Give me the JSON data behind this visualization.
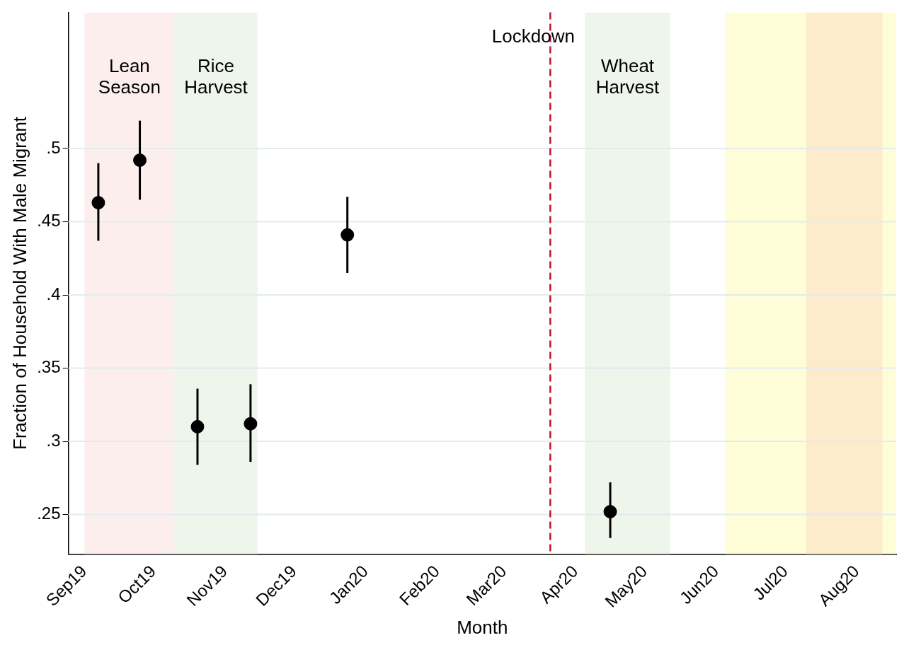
{
  "chart_data": {
    "type": "scatter",
    "xlabel": "Month",
    "ylabel": "Fraction of Household With Male Migrant",
    "x": [
      "2019-09-07",
      "2019-09-25",
      "2019-10-20",
      "2019-11-12",
      "2019-12-24",
      "2020-04-16"
    ],
    "values": [
      0.463,
      0.492,
      0.31,
      0.312,
      0.441,
      0.252
    ],
    "errors": [
      [
        0.437,
        0.49
      ],
      [
        0.465,
        0.519
      ],
      [
        0.284,
        0.336
      ],
      [
        0.286,
        0.339
      ],
      [
        0.415,
        0.467
      ],
      [
        0.234,
        0.272
      ]
    ],
    "color": "#000000",
    "marker": "circle",
    "xlim": [
      "2019-08-25",
      "2020-08-18"
    ],
    "xticks": [
      {
        "value": "2019-09",
        "label": "Sep19"
      },
      {
        "value": "2019-10",
        "label": "Oct19"
      },
      {
        "value": "2019-11",
        "label": "Nov19"
      },
      {
        "value": "2019-12",
        "label": "Dec19"
      },
      {
        "value": "2020-01",
        "label": "Jan20"
      },
      {
        "value": "2020-02",
        "label": "Feb20"
      },
      {
        "value": "2020-03",
        "label": "Mar20"
      },
      {
        "value": "2020-04",
        "label": "Apr20"
      },
      {
        "value": "2020-05",
        "label": "May20"
      },
      {
        "value": "2020-06",
        "label": "Jun20"
      },
      {
        "value": "2020-07",
        "label": "Jul20"
      },
      {
        "value": "2020-08",
        "label": "Aug20"
      }
    ],
    "ylim": [
      0.223,
      0.593
    ],
    "yticks": [
      {
        "value": 0.25,
        "label": ".25"
      },
      {
        "value": 0.3,
        "label": ".3"
      },
      {
        "value": 0.35,
        "label": ".35"
      },
      {
        "value": 0.4,
        "label": ".4"
      },
      {
        "value": 0.45,
        "label": ".45"
      },
      {
        "value": 0.5,
        "label": ".5"
      }
    ],
    "grid": "y",
    "legend": false,
    "bands": [
      {
        "axis": "x",
        "from": "2019-09-01",
        "to": "2019-10-10",
        "label": "Lean Season",
        "color": "#fdeeee"
      },
      {
        "axis": "x",
        "from": "2019-10-10",
        "to": "2019-11-15",
        "label": "Rice Harvest",
        "color": "#eef5ea"
      },
      {
        "axis": "x",
        "from": "2020-04-05",
        "to": "2020-05-12",
        "label": "Wheat Harvest",
        "color": "#eef5ea"
      },
      {
        "axis": "x",
        "from": "2020-06-05",
        "to": "2020-08-18",
        "label": null,
        "color": "#fefdd8"
      },
      {
        "axis": "x",
        "from": "2020-07-10",
        "to": "2020-08-12",
        "label": null,
        "color": "#fdeccc"
      }
    ],
    "ref_lines": [
      {
        "axis": "x",
        "value": "2020-03-21",
        "label": "Lockdown",
        "color": "#c8102e",
        "line_style": "dashed"
      }
    ]
  }
}
